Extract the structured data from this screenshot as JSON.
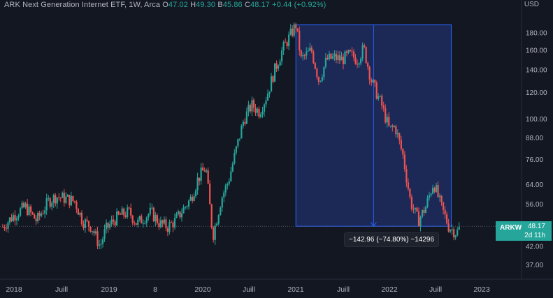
{
  "header": {
    "title": "ARK Next Generation Internet ETF, 1W, Arca",
    "o_label": "O",
    "o_value": "47.02",
    "h_label": "H",
    "h_value": "49.30",
    "b_label": "B",
    "b_value": "45.86",
    "c_label": "C",
    "c_value": "48.17",
    "change": "+0.44 (+0.92%)"
  },
  "currency": "USD",
  "price_tag": {
    "symbol": "ARKW",
    "price": "48.17",
    "countdown": "2d 11h"
  },
  "measure_label": "−142.96 (−74.80%) −14296",
  "colors": {
    "background": "#131722",
    "up": "#26a69a",
    "down": "#ef5350",
    "measure_fill": "#1e2c5e",
    "measure_line": "#2962ff",
    "axis_text": "#b2b5be"
  },
  "chart_data": {
    "type": "candlestick",
    "y_scale": "log",
    "ylim": [
      33,
      205
    ],
    "y_ticks": [
      "180.00",
      "160.00",
      "140.00",
      "120.00",
      "100.00",
      "88.00",
      "76.00",
      "64.00",
      "56.00",
      "42.00",
      "37.00"
    ],
    "x_ticks": [
      "2018",
      "Juill",
      "2019",
      "8",
      "2020",
      "Juill",
      "2021",
      "Juill",
      "2022",
      "Juill",
      "2023"
    ],
    "close_path": [
      [
        "2017-12-01",
        48
      ],
      [
        "2018-01-15",
        52
      ],
      [
        "2018-03-01",
        55
      ],
      [
        "2018-04-15",
        50
      ],
      [
        "2018-06-01",
        57
      ],
      [
        "2018-07-01",
        59
      ],
      [
        "2018-08-15",
        58
      ],
      [
        "2018-09-15",
        57
      ],
      [
        "2018-10-15",
        50
      ],
      [
        "2018-11-20",
        48
      ],
      [
        "2018-12-24",
        42
      ],
      [
        "2019-01-15",
        47
      ],
      [
        "2019-02-15",
        50
      ],
      [
        "2019-03-15",
        52
      ],
      [
        "2019-04-20",
        53
      ],
      [
        "2019-05-20",
        49
      ],
      [
        "2019-06-15",
        51
      ],
      [
        "2019-07-15",
        53
      ],
      [
        "2019-08-20",
        49
      ],
      [
        "2019-09-20",
        48
      ],
      [
        "2019-10-20",
        50
      ],
      [
        "2019-11-20",
        54
      ],
      [
        "2019-12-20",
        58
      ],
      [
        "2020-01-20",
        67
      ],
      [
        "2020-02-19",
        72
      ],
      [
        "2020-03-18",
        45
      ],
      [
        "2020-04-20",
        58
      ],
      [
        "2020-05-20",
        66
      ],
      [
        "2020-06-20",
        82
      ],
      [
        "2020-07-20",
        100
      ],
      [
        "2020-08-20",
        110
      ],
      [
        "2020-09-20",
        105
      ],
      [
        "2020-10-20",
        118
      ],
      [
        "2020-11-20",
        140
      ],
      [
        "2020-12-20",
        160
      ],
      [
        "2021-02-12",
        190
      ],
      [
        "2021-03-05",
        150
      ],
      [
        "2021-04-15",
        160
      ],
      [
        "2021-05-15",
        130
      ],
      [
        "2021-06-15",
        150
      ],
      [
        "2021-07-15",
        152
      ],
      [
        "2021-08-15",
        150
      ],
      [
        "2021-09-15",
        155
      ],
      [
        "2021-10-15",
        150
      ],
      [
        "2021-11-10",
        162
      ],
      [
        "2021-12-10",
        130
      ],
      [
        "2022-01-20",
        110
      ],
      [
        "2022-02-20",
        93
      ],
      [
        "2022-03-15",
        95
      ],
      [
        "2022-04-15",
        78
      ],
      [
        "2022-05-15",
        57
      ],
      [
        "2022-06-15",
        50
      ],
      [
        "2022-07-15",
        55
      ],
      [
        "2022-08-15",
        65
      ],
      [
        "2022-09-15",
        55
      ],
      [
        "2022-10-15",
        48
      ],
      [
        "2022-11-15",
        46
      ],
      [
        "2022-12-01",
        48.17
      ]
    ],
    "last_price": 48.17,
    "measure": {
      "from_date": "2021-02-12",
      "to_date": "2022-12-01",
      "from_price": 190,
      "to_price": 48.17
    }
  }
}
